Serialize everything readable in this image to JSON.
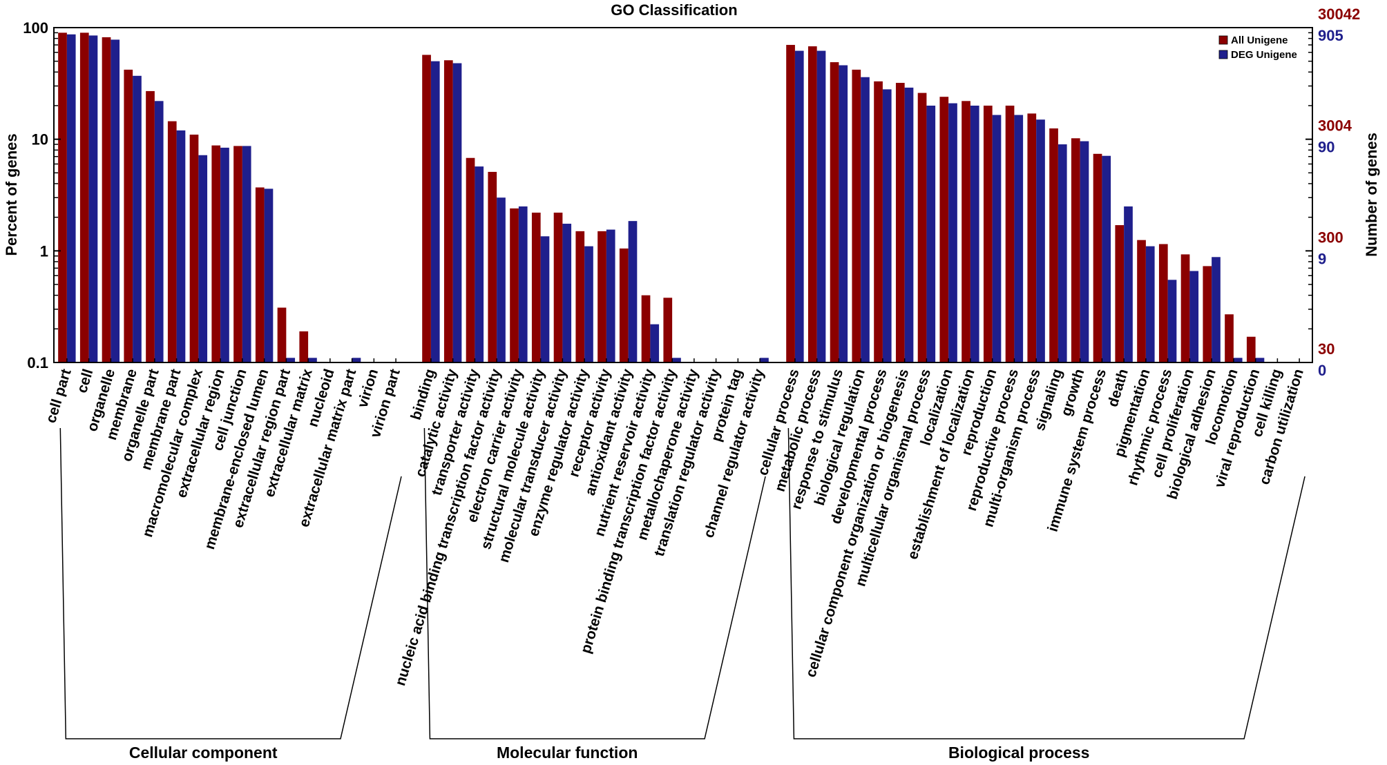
{
  "chart_data": {
    "type": "bar",
    "title": "GO Classification",
    "ylabel_left": "Percent of genes",
    "ylabel_right": "Number of genes",
    "yscale": "log",
    "ylim": [
      0.1,
      100
    ],
    "left_ticks": [
      "100",
      "10",
      "1",
      "0.1"
    ],
    "right_ticks_all": [
      "30042",
      "3004",
      "300",
      "30"
    ],
    "right_ticks_deg": [
      "905",
      "90",
      "9",
      "0"
    ],
    "legend_position": "top-right",
    "colors": {
      "all": "#8b0000",
      "deg": "#1f1f8c"
    },
    "series": [
      {
        "name": "All Unigene",
        "values": [
          90,
          90,
          82,
          42,
          27,
          14.5,
          11,
          8.8,
          8.7,
          3.7,
          0.31,
          0.19,
          0.1,
          0.1,
          0.1,
          0.1,
          57,
          51,
          6.8,
          5.1,
          2.4,
          2.2,
          2.2,
          1.5,
          1.5,
          1.05,
          0.4,
          0.38,
          0.1,
          0.1,
          0.1,
          0.1,
          70,
          68,
          49,
          42,
          33,
          32,
          26,
          24,
          22,
          20,
          20,
          17,
          12.5,
          10.2,
          7.4,
          1.7,
          1.25,
          1.15,
          0.93,
          0.73,
          0.27,
          0.17,
          0.1,
          0.1
        ]
      },
      {
        "name": "DEG Unigene",
        "values": [
          87,
          85,
          78,
          37,
          22,
          12,
          7.2,
          8.4,
          8.7,
          3.6,
          0.11,
          0.11,
          0.1,
          0.11,
          0.1,
          0.1,
          50,
          48,
          5.7,
          3.0,
          2.5,
          1.35,
          1.75,
          1.1,
          1.55,
          1.85,
          0.22,
          0.11,
          0.1,
          0.1,
          0.1,
          0.11,
          62,
          62,
          46,
          36,
          28,
          29,
          20,
          21,
          20,
          16.5,
          16.5,
          15,
          9,
          9.6,
          7.1,
          2.5,
          1.1,
          0.55,
          0.66,
          0.88,
          0.11,
          0.11,
          0.1,
          0.1
        ]
      }
    ],
    "categories": [
      "cell part",
      "cell",
      "organelle",
      "membrane",
      "organelle part",
      "membrane part",
      "macromolecular complex",
      "extracellular region",
      "cell junction",
      "membrane-enclosed lumen",
      "extracellular region part",
      "extracellular matrix",
      "nucleoid",
      "extracellular matrix part",
      "virion",
      "virion part",
      "binding",
      "catalytic activity",
      "transporter activity",
      "nucleic acid binding transcription factor activity",
      "electron carrier activity",
      "structural molecule activity",
      "molecular transducer activity",
      "enzyme regulator activity",
      "receptor activity",
      "antioxidant activity",
      "nutrient reservoir activity",
      "protein binding transcription factor activity",
      "metallochaperone activity",
      "translation regulator activity",
      "protein tag",
      "channel regulator activity",
      "cellular process",
      "metabolic process",
      "response to stimulus",
      "biological regulation",
      "developmental process",
      "cellular component organization or biogenesis",
      "multicellular organismal process",
      "localization",
      "establishment of localization",
      "reproduction",
      "reproductive process",
      "multi-organism process",
      "signaling",
      "growth",
      "immune system process",
      "death",
      "pigmentation",
      "rhythmic process",
      "cell proliferation",
      "biological adhesion",
      "locomotion",
      "viral reproduction",
      "cell killing",
      "carbon utilization"
    ],
    "groups": [
      {
        "name": "Cellular component",
        "start": 0,
        "end": 15
      },
      {
        "name": "Molecular function",
        "start": 16,
        "end": 31
      },
      {
        "name": "Biological process",
        "start": 32,
        "end": 55
      }
    ]
  }
}
